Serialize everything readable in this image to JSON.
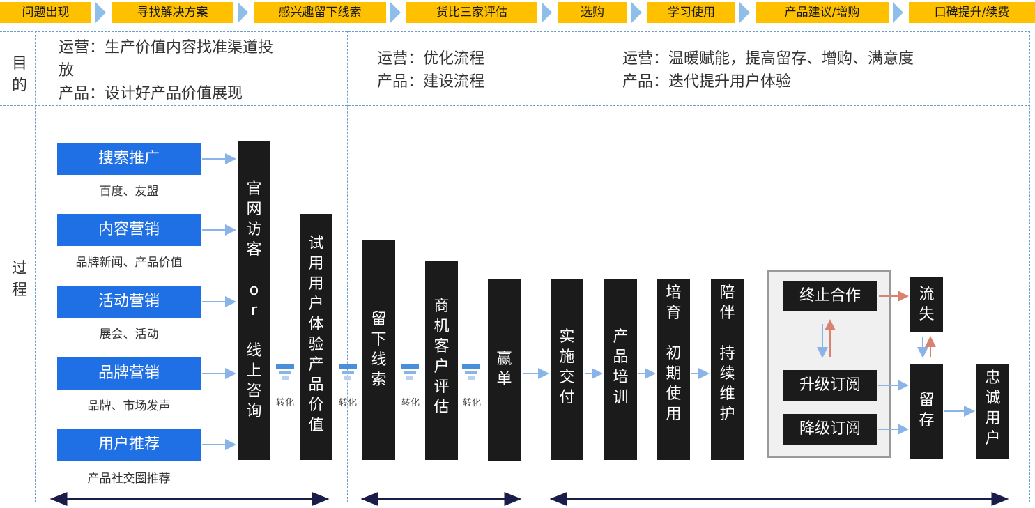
{
  "stages": [
    "问题出现",
    "寻找解决方案",
    "感兴趣留下线索",
    "货比三家评估",
    "选购",
    "学习使用",
    "产品建议/增购",
    "口碑提升/续费"
  ],
  "rows": {
    "purpose_label": [
      "目",
      "的"
    ],
    "process_label": [
      "过",
      "程"
    ]
  },
  "purpose": {
    "col1": [
      "运营：生产价值内容找准渠道投",
      "放",
      "产品：设计好产品价值展现"
    ],
    "col2": [
      "运营：优化流程",
      "产品：建设流程"
    ],
    "col3": [
      "运营：温暖赋能，提高留存、增购、满意度",
      "产品：迭代提升用户体验"
    ]
  },
  "channels": [
    {
      "title": "搜索推广",
      "sub": "百度、友盟"
    },
    {
      "title": "内容营销",
      "sub": "品牌新闻、产品价值"
    },
    {
      "title": "活动营销",
      "sub": "展会、活动"
    },
    {
      "title": "品牌营销",
      "sub": "品牌、市场发声"
    },
    {
      "title": "用户推荐",
      "sub": "产品社交圈推荐"
    }
  ],
  "visitor_box": [
    "官",
    "网",
    "访",
    "客",
    "",
    "o",
    "r",
    "",
    "线",
    "上",
    "咨",
    "询"
  ],
  "trial_box": [
    "试",
    "用",
    "用",
    "户",
    "体",
    "验",
    "产",
    "品",
    "价",
    "值"
  ],
  "lead_box": [
    "留",
    "下",
    "线",
    "索"
  ],
  "eval_box": [
    "商",
    "机",
    "客",
    "户",
    "评",
    "估"
  ],
  "win_box": [
    "赢",
    "单"
  ],
  "deliver_box": [
    "实",
    "施",
    "交",
    "付"
  ],
  "train_box": [
    "产",
    "品",
    "培",
    "训"
  ],
  "nurture_box": [
    "培",
    "育",
    "",
    "初",
    "期",
    "使",
    "用"
  ],
  "companion_box": [
    "陪",
    "伴",
    "",
    "持",
    "续",
    "维",
    "护"
  ],
  "convert_label": "转化",
  "terminate": "终止合作",
  "upgrade": "升级订阅",
  "downgrade": "降级订阅",
  "churn_box": [
    "流",
    "失"
  ],
  "retain_box": [
    "留",
    "存"
  ],
  "loyal_box": [
    "忠",
    "诚",
    "用",
    "户"
  ],
  "colors": {
    "stage": "#ffc000",
    "chevron": "#8fbfe8",
    "channel": "#1f6fe5",
    "dark_box": "#1b1b1b",
    "arrow_blue": "#8ab4e8",
    "arrow_red": "#d9826f",
    "dashed": "#6a9fcc",
    "range_arrow": "#1c1c4a"
  }
}
